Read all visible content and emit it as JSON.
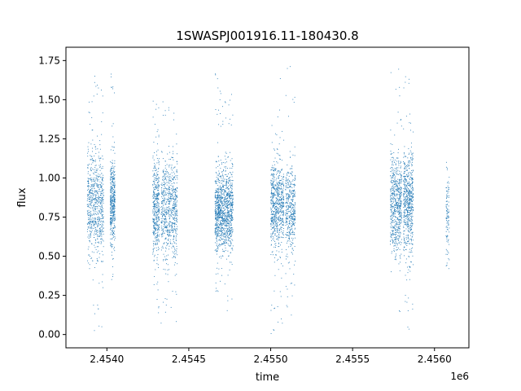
{
  "chart_data": {
    "type": "scatter",
    "title": "1SWASPJ001916.11-180430.8",
    "xlabel": "time",
    "ylabel": "flux",
    "x_offset_label": "1e6",
    "x_multiplier": 1000000,
    "xlim": [
      2.45375,
      2.45621
    ],
    "ylim": [
      -0.085,
      1.835
    ],
    "x_ticks": [
      2.454,
      2.4545,
      2.455,
      2.4555,
      2.456
    ],
    "x_tick_labels": [
      "2.4540",
      "2.4545",
      "2.4550",
      "2.4555",
      "2.4560"
    ],
    "y_ticks": [
      0.0,
      0.25,
      0.5,
      0.75,
      1.0,
      1.25,
      1.5,
      1.75
    ],
    "y_tick_labels": [
      "0.00",
      "0.25",
      "0.50",
      "0.75",
      "1.00",
      "1.25",
      "1.50",
      "1.75"
    ],
    "grid": false,
    "marker_color": "#1f77b4",
    "series": [
      {
        "clusters": [
          {
            "x_range": [
              2.45388,
              2.45398
            ],
            "y_center": 0.83,
            "y_spread": 0.16,
            "y_range": [
              0.01,
              1.66
            ],
            "density": 1.0
          },
          {
            "x_range": [
              2.45402,
              2.45405
            ],
            "y_center": 0.84,
            "y_spread": 0.15,
            "y_range": [
              0.3,
              1.71
            ],
            "density": 0.6
          },
          {
            "x_range": [
              2.45428,
              2.45432
            ],
            "y_center": 0.8,
            "y_spread": 0.16,
            "y_range": [
              0.09,
              1.5
            ],
            "density": 0.6
          },
          {
            "x_range": [
              2.45433,
              2.45443
            ],
            "y_center": 0.8,
            "y_spread": 0.16,
            "y_range": [
              0.02,
              1.55
            ],
            "density": 1.0
          },
          {
            "x_range": [
              2.45466,
              2.4547
            ],
            "y_center": 0.79,
            "y_spread": 0.12,
            "y_range": [
              0.27,
              1.68
            ],
            "density": 0.7
          },
          {
            "x_range": [
              2.4547,
              2.45477
            ],
            "y_center": 0.8,
            "y_spread": 0.13,
            "y_range": [
              0.15,
              1.58
            ],
            "density": 1.0
          },
          {
            "x_range": [
              2.455,
              2.45508
            ],
            "y_center": 0.82,
            "y_spread": 0.13,
            "y_range": [
              0.0,
              1.65
            ],
            "density": 1.0
          },
          {
            "x_range": [
              2.45509,
              2.45515
            ],
            "y_center": 0.8,
            "y_spread": 0.14,
            "y_range": [
              0.1,
              1.75
            ],
            "density": 0.6
          },
          {
            "x_range": [
              2.45573,
              2.4558
            ],
            "y_center": 0.83,
            "y_spread": 0.16,
            "y_range": [
              0.02,
              1.7
            ],
            "density": 0.9
          },
          {
            "x_range": [
              2.45581,
              2.45587
            ],
            "y_center": 0.84,
            "y_spread": 0.17,
            "y_range": [
              0.03,
              1.66
            ],
            "density": 0.9
          },
          {
            "x_range": [
              2.45607,
              2.45609
            ],
            "y_center": 0.75,
            "y_spread": 0.14,
            "y_range": [
              0.4,
              1.11
            ],
            "density": 0.15
          }
        ]
      }
    ]
  }
}
